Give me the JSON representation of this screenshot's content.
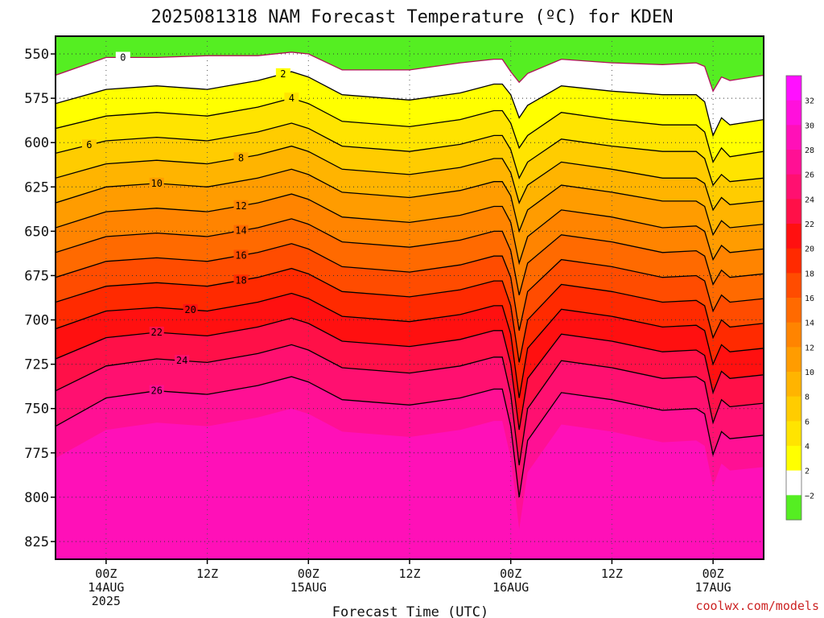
{
  "chart_data": {
    "type": "contour",
    "title": "2025081318 NAM Forecast Temperature (ºC) for KDEN",
    "xlabel": "Forecast Time (UTC)",
    "ylabel": "",
    "y_ticks": [
      "550",
      "575",
      "600",
      "625",
      "650",
      "675",
      "700",
      "725",
      "750",
      "775",
      "800",
      "825"
    ],
    "y_values": [
      550,
      575,
      600,
      625,
      650,
      675,
      700,
      725,
      750,
      775,
      800,
      825
    ],
    "ylim": [
      540,
      835
    ],
    "x_hours": [
      6,
      18,
      30,
      42,
      54,
      66,
      78
    ],
    "xlim": [
      0,
      84
    ],
    "x_ticks": [
      {
        "hour": 6,
        "line1": "00Z",
        "line2": "14AUG",
        "line3": "2025"
      },
      {
        "hour": 18,
        "line1": "12Z",
        "line2": "",
        "line3": ""
      },
      {
        "hour": 30,
        "line1": "00Z",
        "line2": "15AUG",
        "line3": ""
      },
      {
        "hour": 42,
        "line1": "12Z",
        "line2": "",
        "line3": ""
      },
      {
        "hour": 54,
        "line1": "00Z",
        "line2": "16AUG",
        "line3": ""
      },
      {
        "hour": 66,
        "line1": "12Z",
        "line2": "",
        "line3": ""
      },
      {
        "hour": 78,
        "line1": "00Z",
        "line2": "17AUG",
        "line3": ""
      }
    ],
    "colorbar": {
      "levels": [
        -2,
        0,
        2,
        4,
        6,
        8,
        10,
        12,
        14,
        16,
        18,
        20,
        22,
        24,
        26,
        28,
        30,
        32,
        34
      ],
      "labels": [
        "−2",
        "2",
        "4",
        "6",
        "8",
        "10",
        "12",
        "14",
        "16",
        "18",
        "20",
        "22",
        "24",
        "26",
        "28",
        "30",
        "32"
      ],
      "colors": [
        "#55ee22",
        "#ffffff",
        "#ffff00",
        "#ffe400",
        "#ffcc00",
        "#ffb400",
        "#ff9c00",
        "#ff8400",
        "#ff6a00",
        "#ff4c00",
        "#ff2a00",
        "#ff1010",
        "#ff1048",
        "#ff1070",
        "#ff1094",
        "#ff10b8",
        "#ff10dc",
        "#ff10ff"
      ]
    },
    "terrain_color": "#a0522d",
    "terrain_top_p": 836,
    "times": [
      0,
      6,
      12,
      18,
      24,
      28,
      30,
      34,
      42,
      48,
      52,
      53,
      54,
      55,
      56,
      60,
      66,
      72,
      76,
      77,
      78,
      79,
      80,
      84
    ],
    "contours": [
      {
        "value": 0,
        "label": "0",
        "label_hour": 8,
        "p": [
          562,
          552,
          552,
          551,
          551,
          549,
          550,
          559,
          559,
          555,
          553,
          553,
          560,
          566,
          561,
          553,
          555,
          556,
          555,
          557,
          571,
          563,
          565,
          562
        ]
      },
      {
        "value": 2,
        "label": "2",
        "label_hour": 27,
        "p": [
          578,
          570,
          568,
          570,
          565,
          560,
          563,
          573,
          576,
          572,
          567,
          567,
          573,
          586,
          579,
          568,
          571,
          573,
          573,
          577,
          596,
          586,
          590,
          587
        ]
      },
      {
        "value": 4,
        "label": "4",
        "label_hour": 28,
        "p": [
          592,
          585,
          583,
          585,
          580,
          575,
          578,
          588,
          591,
          587,
          582,
          582,
          589,
          603,
          596,
          583,
          587,
          590,
          590,
          594,
          611,
          603,
          608,
          605
        ]
      },
      {
        "value": 6,
        "label": "6",
        "label_hour": 4,
        "p": [
          606,
          599,
          597,
          599,
          594,
          589,
          592,
          602,
          605,
          601,
          596,
          596,
          604,
          620,
          611,
          598,
          602,
          605,
          605,
          609,
          624,
          618,
          622,
          620
        ]
      },
      {
        "value": 8,
        "label": "8",
        "label_hour": 22,
        "p": [
          620,
          612,
          610,
          612,
          607,
          602,
          605,
          615,
          618,
          614,
          609,
          609,
          617,
          634,
          624,
          611,
          615,
          620,
          620,
          623,
          638,
          631,
          635,
          633
        ]
      },
      {
        "value": 10,
        "label": "10",
        "label_hour": 12,
        "p": [
          634,
          625,
          623,
          625,
          620,
          615,
          618,
          628,
          631,
          627,
          622,
          622,
          630,
          650,
          638,
          624,
          628,
          633,
          633,
          636,
          652,
          644,
          648,
          646
        ]
      },
      {
        "value": 12,
        "label": "12",
        "label_hour": 22,
        "p": [
          648,
          639,
          637,
          639,
          634,
          629,
          632,
          642,
          645,
          641,
          636,
          636,
          645,
          668,
          653,
          638,
          642,
          648,
          647,
          650,
          666,
          658,
          662,
          660
        ]
      },
      {
        "value": 14,
        "label": "14",
        "label_hour": 22,
        "p": [
          662,
          653,
          651,
          653,
          648,
          643,
          646,
          656,
          659,
          655,
          650,
          650,
          661,
          686,
          668,
          652,
          656,
          662,
          661,
          664,
          680,
          672,
          676,
          674
        ]
      },
      {
        "value": 16,
        "label": "16",
        "label_hour": 22,
        "p": [
          676,
          667,
          665,
          667,
          662,
          657,
          660,
          670,
          673,
          669,
          664,
          664,
          676,
          706,
          684,
          666,
          670,
          676,
          675,
          678,
          695,
          686,
          690,
          688
        ]
      },
      {
        "value": 18,
        "label": "18",
        "label_hour": 22,
        "p": [
          690,
          681,
          679,
          681,
          676,
          671,
          674,
          684,
          687,
          683,
          678,
          678,
          692,
          724,
          700,
          680,
          684,
          690,
          689,
          692,
          710,
          700,
          704,
          702
        ]
      },
      {
        "value": 20,
        "label": "20",
        "label_hour": 16,
        "p": [
          705,
          695,
          693,
          695,
          690,
          685,
          688,
          698,
          701,
          697,
          692,
          692,
          708,
          744,
          716,
          694,
          698,
          704,
          703,
          706,
          725,
          714,
          718,
          716
        ]
      },
      {
        "value": 22,
        "label": "22",
        "label_hour": 12,
        "p": [
          722,
          710,
          707,
          709,
          704,
          699,
          702,
          712,
          715,
          711,
          706,
          706,
          725,
          762,
          733,
          708,
          712,
          718,
          717,
          720,
          741,
          729,
          733,
          731
        ]
      },
      {
        "value": 24,
        "label": "24",
        "label_hour": 15,
        "p": [
          740,
          726,
          722,
          724,
          719,
          714,
          717,
          727,
          730,
          726,
          721,
          721,
          742,
          782,
          750,
          723,
          727,
          733,
          732,
          735,
          758,
          745,
          749,
          747
        ]
      },
      {
        "value": 26,
        "label": "26",
        "label_hour": 12,
        "p": [
          760,
          744,
          740,
          742,
          737,
          732,
          735,
          745,
          748,
          744,
          739,
          739,
          760,
          800,
          768,
          741,
          745,
          751,
          750,
          753,
          776,
          763,
          767,
          765
        ]
      }
    ]
  }
}
